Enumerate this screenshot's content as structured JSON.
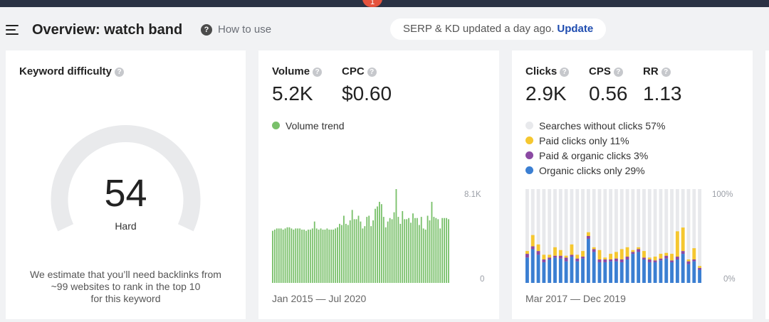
{
  "header": {
    "notification_count": "1",
    "title": "Overview: watch band",
    "how_to_use": "How to use",
    "serp_notice": "SERP & KD updated a day ago.",
    "update_link": "Update"
  },
  "kd_card": {
    "label": "Keyword difficulty",
    "score": "54",
    "score_value": 54,
    "score_max": 100,
    "rating": "Hard",
    "estimate": [
      "We estimate that you’ll need backlinks from",
      "~99 websites to rank in the top 10",
      "for this keyword"
    ],
    "colors": {
      "track": "#e9eaec",
      "fill": "#e9eaec"
    }
  },
  "volume_card": {
    "volume_label": "Volume",
    "volume_value": "5.2K",
    "cpc_label": "CPC",
    "cpc_value": "$0.60",
    "legend_label": "Volume trend",
    "y_max_label": "8.1K",
    "y_min_label": "0",
    "date_range": "Jan 2015 — Jul 2020",
    "color": "#79c06a"
  },
  "clicks_card": {
    "clicks_label": "Clicks",
    "clicks_value": "2.9K",
    "cps_label": "CPS",
    "cps_value": "0.56",
    "rr_label": "RR",
    "rr_value": "1.13",
    "legend": [
      {
        "label": "Searches without clicks 57%",
        "color": "#e8e9ec"
      },
      {
        "label": "Paid clicks only 11%",
        "color": "#f5c730"
      },
      {
        "label": "Paid & organic clicks 3%",
        "color": "#8b4aa3"
      },
      {
        "label": "Organic clicks only 29%",
        "color": "#3b7fd2"
      }
    ],
    "y_max_label": "100%",
    "y_min_label": "0%",
    "date_range": "Mar 2017 — Dec 2019"
  },
  "chart_data": [
    {
      "type": "bar",
      "title": "Volume trend",
      "x_range": [
        "Jan 2015",
        "Jul 2020"
      ],
      "ylim": [
        0,
        8100
      ],
      "values": [
        4500,
        4600,
        4700,
        4700,
        4700,
        4600,
        4700,
        4800,
        4800,
        4700,
        4600,
        4700,
        4700,
        4700,
        4600,
        4600,
        4500,
        4600,
        4600,
        4700,
        5300,
        4700,
        4600,
        4700,
        4600,
        4600,
        4700,
        4600,
        4600,
        4600,
        4700,
        4800,
        5100,
        5000,
        5800,
        5100,
        5000,
        5400,
        6300,
        5500,
        5500,
        5800,
        5300,
        4700,
        4900,
        5700,
        5800,
        4900,
        5400,
        6400,
        6600,
        7000,
        6800,
        5700,
        4800,
        5300,
        5600,
        5500,
        6100,
        8100,
        5700,
        5100,
        6200,
        5500,
        5500,
        5600,
        5200,
        6000,
        5600,
        5600,
        5000,
        5700,
        4700,
        4600,
        5800,
        5400,
        7000,
        5700,
        5600,
        5500,
        4700,
        5600,
        5600,
        5600,
        5500
      ],
      "series": [
        {
          "name": "Volume trend",
          "color": "#79c06a"
        }
      ]
    },
    {
      "type": "bar",
      "title": "Clicks",
      "x_range": [
        "Mar 2017",
        "Dec 2019"
      ],
      "ylim": [
        0,
        100
      ],
      "stacked": true,
      "series": [
        {
          "name": "Organic clicks only",
          "color": "#3b7fd2",
          "values": [
            27,
            36,
            30,
            22,
            25,
            27,
            26,
            23,
            28,
            23,
            26,
            47,
            33,
            22,
            22,
            23,
            23,
            22,
            25,
            31,
            33,
            25,
            22,
            22,
            24,
            26,
            22,
            25,
            31,
            20,
            23,
            14
          ]
        },
        {
          "name": "Paid & organic clicks",
          "color": "#8b4aa3",
          "values": [
            4,
            3,
            4,
            3,
            2,
            2,
            3,
            4,
            2,
            3,
            2,
            3,
            3,
            3,
            3,
            2,
            3,
            3,
            3,
            2,
            3,
            2,
            3,
            2,
            2,
            3,
            2,
            3,
            3,
            3,
            2,
            2
          ]
        },
        {
          "name": "Paid clicks only",
          "color": "#f5c730",
          "values": [
            3,
            12,
            7,
            5,
            3,
            9,
            6,
            2,
            11,
            4,
            6,
            4,
            2,
            10,
            2,
            6,
            7,
            11,
            10,
            2,
            2,
            7,
            2,
            4,
            5,
            3,
            7,
            27,
            25,
            2,
            12,
            2
          ]
        }
      ]
    }
  ]
}
